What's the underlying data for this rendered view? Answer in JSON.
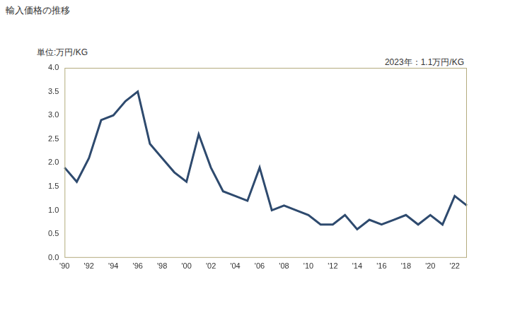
{
  "chart_data": {
    "type": "line",
    "title": "輸入価格の推移",
    "y_label": "単位:万円/KG",
    "annotation": "2023年：1.1万円/KG",
    "categories": [
      "'90",
      null,
      "'92",
      null,
      "'94",
      null,
      "'96",
      null,
      "'98",
      null,
      "'00",
      null,
      "'02",
      null,
      "'04",
      null,
      "'06",
      null,
      "'08",
      null,
      "'10",
      null,
      "'12",
      null,
      "'14",
      null,
      "'16",
      null,
      "'18",
      null,
      "'20",
      null,
      "'22",
      null
    ],
    "values": [
      1.9,
      1.6,
      2.1,
      2.9,
      3.0,
      3.3,
      3.5,
      2.4,
      2.1,
      1.8,
      1.6,
      2.6,
      1.9,
      1.4,
      1.3,
      1.2,
      1.9,
      1.0,
      1.1,
      1.0,
      0.9,
      0.7,
      0.7,
      0.9,
      0.6,
      0.8,
      0.7,
      0.8,
      0.9,
      0.7,
      0.9,
      0.7,
      1.3,
      1.1
    ],
    "color": "#2e4a6e",
    "ylim": [
      0,
      4
    ],
    "yticks": [
      {
        "value": 0,
        "label": "0.0"
      },
      0.5,
      {
        "value": 1,
        "label": "1.0"
      },
      1.5,
      {
        "value": 2,
        "label": "2.0"
      },
      2.5,
      {
        "value": 3,
        "label": "3.0"
      },
      3.5,
      {
        "value": 4,
        "label": "4.0"
      }
    ],
    "grid": false
  }
}
